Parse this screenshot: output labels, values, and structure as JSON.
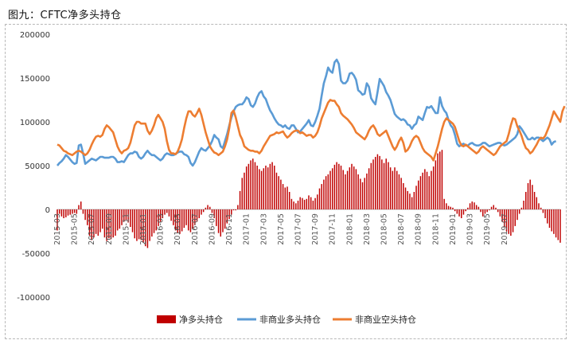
{
  "figure": {
    "title": "图九：CFTC净多头持仓"
  },
  "chart_data": {
    "type": "bar+line",
    "ylim": [
      -100000,
      200000
    ],
    "yticks": [
      200000,
      150000,
      100000,
      50000,
      0,
      -50000,
      -100000
    ],
    "x_start": "2015-03",
    "x_end": "2019-07",
    "points_per_month": 4,
    "x_tick_labels": [
      "2015-03",
      "2015-05",
      "2015-07",
      "2015-09",
      "2015-11",
      "2016-01",
      "2016-03",
      "2016-05",
      "2016-07",
      "2016-09",
      "2016-11",
      "2017-01",
      "2017-03",
      "2017-05",
      "2017-07",
      "2017-09",
      "2017-11",
      "2018-01",
      "2018-03",
      "2018-05",
      "2018-07",
      "2018-09",
      "2018-11",
      "2019-01",
      "2019-03",
      "2019-05",
      "2019-07"
    ],
    "legend_position": "bottom",
    "series": [
      {
        "name": "净多头持仓",
        "kind": "bar",
        "color": "#c00000",
        "values": [
          -24000,
          -5000,
          -8000,
          -10000,
          -9000,
          -7000,
          -6000,
          -5000,
          -4000,
          -5000,
          5000,
          9000,
          -5000,
          -12000,
          -18000,
          -30000,
          -35000,
          -32000,
          -28000,
          -30000,
          -26000,
          -22000,
          -32000,
          -36000,
          -33000,
          -34000,
          -32000,
          -30000,
          -24000,
          -22000,
          -18000,
          -14000,
          -12000,
          -15000,
          -20000,
          -26000,
          -33000,
          -36000,
          -34000,
          -35000,
          -38000,
          -42000,
          -44000,
          -36000,
          -31000,
          -27000,
          -24000,
          -19000,
          -14000,
          -10000,
          -6000,
          -4000,
          -8000,
          -13000,
          -18000,
          -24000,
          -27000,
          -28000,
          -25000,
          -21000,
          -18000,
          -24000,
          -26000,
          -22000,
          -18000,
          -14000,
          -10000,
          -6000,
          -3000,
          2000,
          5000,
          3000,
          -4000,
          -10000,
          -19000,
          -27000,
          -31000,
          -26000,
          -22000,
          -16000,
          -11000,
          -6000,
          -1000,
          -1000,
          5000,
          21000,
          36000,
          42000,
          49000,
          52000,
          56000,
          58000,
          54000,
          50000,
          46000,
          44000,
          47000,
          50000,
          48000,
          52000,
          54000,
          50000,
          42000,
          38000,
          34000,
          29000,
          25000,
          26000,
          20000,
          12000,
          9000,
          7000,
          10000,
          14000,
          13000,
          11000,
          12000,
          16000,
          14000,
          10000,
          13000,
          17000,
          24000,
          29000,
          34000,
          38000,
          40000,
          44000,
          47000,
          51000,
          54000,
          52000,
          50000,
          45000,
          40000,
          44000,
          48000,
          52000,
          49000,
          46000,
          40000,
          35000,
          31000,
          36000,
          41000,
          47000,
          53000,
          57000,
          60000,
          63000,
          61000,
          57000,
          53000,
          58000,
          54000,
          48000,
          44000,
          48000,
          44000,
          40000,
          36000,
          30000,
          25000,
          21000,
          18000,
          14000,
          20000,
          27000,
          33000,
          38000,
          42000,
          46000,
          43000,
          38000,
          44000,
          49000,
          56000,
          64000,
          66000,
          68000,
          12000,
          7000,
          4000,
          3000,
          2000,
          -2000,
          -5000,
          -8000,
          -10000,
          -6000,
          -2000,
          2000,
          7000,
          9000,
          8000,
          5000,
          3000,
          -3000,
          -8000,
          -5000,
          -3000,
          -1000,
          3000,
          5000,
          2000,
          -3000,
          -8000,
          -14000,
          -20000,
          -25000,
          -28000,
          -30000,
          -26000,
          -19000,
          -12000,
          -5000,
          2000,
          10000,
          20000,
          30000,
          34000,
          28000,
          20000,
          14000,
          7000,
          2000,
          -4000,
          -10000,
          -16000,
          -21000,
          -25000,
          -28000,
          -32000,
          -35000,
          -38000
        ]
      },
      {
        "name": "非商业多头持仓",
        "kind": "line",
        "color": "#5b9bd5",
        "values": [
          50000,
          53000,
          55000,
          58000,
          62000,
          60000,
          57000,
          54000,
          52000,
          53000,
          73000,
          74000,
          64000,
          52000,
          54000,
          56000,
          58000,
          57000,
          56000,
          58000,
          60000,
          60000,
          59000,
          59000,
          59000,
          60000,
          60000,
          58000,
          54000,
          54000,
          55000,
          54000,
          58000,
          62000,
          64000,
          64000,
          66000,
          65000,
          60000,
          58000,
          60000,
          64000,
          67000,
          64000,
          62000,
          62000,
          60000,
          58000,
          56000,
          58000,
          62000,
          64000,
          63000,
          62000,
          62000,
          63000,
          65000,
          66000,
          66000,
          63000,
          62000,
          60000,
          53000,
          50000,
          54000,
          60000,
          66000,
          70000,
          68000,
          67000,
          70000,
          73000,
          78000,
          85000,
          82000,
          80000,
          72000,
          70000,
          78000,
          86000,
          96000,
          105000,
          112000,
          117000,
          119000,
          120000,
          120000,
          123000,
          128000,
          126000,
          119000,
          117000,
          121000,
          128000,
          133000,
          135000,
          129000,
          126000,
          119000,
          113000,
          109000,
          104000,
          100000,
          97000,
          96000,
          94000,
          96000,
          93000,
          92000,
          96000,
          96000,
          92000,
          88000,
          89000,
          92000,
          95000,
          98000,
          102000,
          96000,
          95000,
          100000,
          107000,
          115000,
          130000,
          144000,
          152000,
          162000,
          158000,
          156000,
          168000,
          171000,
          166000,
          147000,
          144000,
          144000,
          147000,
          155000,
          156000,
          153000,
          148000,
          136000,
          134000,
          131000,
          132000,
          144000,
          140000,
          127000,
          123000,
          120000,
          134000,
          149000,
          145000,
          141000,
          134000,
          130000,
          125000,
          117000,
          109000,
          106000,
          104000,
          102000,
          103000,
          101000,
          97000,
          96000,
          92000,
          96000,
          98000,
          106000,
          104000,
          102000,
          110000,
          117000,
          116000,
          118000,
          114000,
          110000,
          110000,
          128000,
          118000,
          113000,
          110000,
          102000,
          96000,
          93000,
          85000,
          75000,
          72000,
          74000,
          75000,
          73000,
          73000,
          75000,
          76000,
          74000,
          73000,
          73000,
          74000,
          76000,
          76000,
          74000,
          72000,
          73000,
          74000,
          75000,
          76000,
          76000,
          74000,
          73000,
          74000,
          76000,
          78000,
          80000,
          82000,
          86000,
          95000,
          92000,
          88000,
          84000,
          80000,
          80000,
          82000,
          80000,
          82000,
          82000,
          80000,
          78000,
          80000,
          82000,
          80000,
          74000,
          77000,
          78000
        ]
      },
      {
        "name": "非商业空头持仓",
        "kind": "line",
        "color": "#ed7d31",
        "values": [
          74000,
          73000,
          70000,
          67000,
          66000,
          64000,
          63000,
          62000,
          64000,
          66000,
          67000,
          66000,
          64000,
          62000,
          64000,
          68000,
          74000,
          79000,
          83000,
          84000,
          83000,
          85000,
          92000,
          96000,
          94000,
          91000,
          88000,
          80000,
          72000,
          67000,
          64000,
          67000,
          68000,
          70000,
          76000,
          86000,
          96000,
          100000,
          100000,
          98000,
          98000,
          98000,
          90000,
          86000,
          90000,
          96000,
          104000,
          108000,
          104000,
          100000,
          92000,
          78000,
          68000,
          64000,
          64000,
          63000,
          66000,
          72000,
          80000,
          93000,
          104000,
          112000,
          112000,
          108000,
          106000,
          110000,
          115000,
          108000,
          98000,
          88000,
          80000,
          72000,
          68000,
          65000,
          64000,
          62000,
          64000,
          66000,
          72000,
          80000,
          93000,
          110000,
          113000,
          105000,
          95000,
          85000,
          80000,
          72000,
          70000,
          68000,
          67000,
          67000,
          66000,
          66000,
          64000,
          67000,
          72000,
          76000,
          80000,
          84000,
          85000,
          86000,
          88000,
          87000,
          88000,
          89000,
          85000,
          82000,
          84000,
          87000,
          89000,
          90000,
          90000,
          87000,
          88000,
          86000,
          84000,
          85000,
          85000,
          82000,
          84000,
          88000,
          95000,
          104000,
          110000,
          116000,
          122000,
          125000,
          124000,
          124000,
          120000,
          117000,
          110000,
          107000,
          105000,
          103000,
          100000,
          97000,
          93000,
          88000,
          86000,
          84000,
          82000,
          80000,
          84000,
          90000,
          94000,
          96000,
          92000,
          86000,
          84000,
          86000,
          88000,
          90000,
          84000,
          78000,
          72000,
          68000,
          72000,
          78000,
          82000,
          76000,
          66000,
          68000,
          72000,
          78000,
          82000,
          84000,
          82000,
          76000,
          70000,
          66000,
          64000,
          62000,
          60000,
          56000,
          64000,
          72000,
          82000,
          92000,
          100000,
          104000,
          102000,
          100000,
          98000,
          94000,
          86000,
          78000,
          73000,
          72000,
          74000,
          72000,
          70000,
          68000,
          66000,
          64000,
          66000,
          70000,
          72000,
          70000,
          68000,
          66000,
          64000,
          62000,
          64000,
          68000,
          72000,
          74000,
          76000,
          78000,
          86000,
          96000,
          104000,
          103000,
          95000,
          90000,
          84000,
          76000,
          70000,
          68000,
          64000,
          66000,
          70000,
          74000,
          79000,
          82000,
          81000,
          84000,
          90000,
          96000,
          104000,
          112000,
          108000,
          104000,
          100000,
          112000,
          118000
        ]
      }
    ]
  }
}
